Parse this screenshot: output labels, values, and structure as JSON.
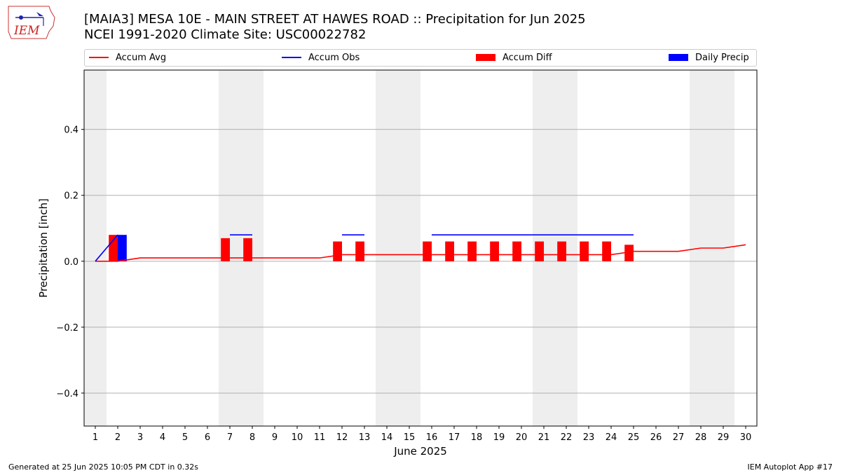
{
  "header": {
    "title_line1": "[MAIA3] MESA 10E - MAIN STREET AT HAWES ROAD :: Precipitation for Jun 2025",
    "title_line2": "NCEI 1991-2020 Climate Site: USC00022782",
    "logo_text": "IEM"
  },
  "footer": {
    "generated": "Generated at 25 Jun 2025 10:05 PM CDT in 0.32s",
    "app": "IEM Autoplot App #17"
  },
  "colors": {
    "avg": "#ff0000",
    "obs": "#0000ff",
    "diff": "#ff0000",
    "daily": "#0000ff",
    "weekend": "#eeeeee",
    "grid": "#b0b0b0"
  },
  "chart_data": {
    "type": "bar",
    "title": "[MAIA3] MESA 10E - MAIN STREET AT HAWES ROAD :: Precipitation for Jun 2025",
    "subtitle": "NCEI 1991-2020 Climate Site: USC00022782",
    "xlabel": "June 2025",
    "ylabel": "Precipitation [inch]",
    "xlim": [
      0.5,
      30.5
    ],
    "ylim": [
      -0.5,
      0.58
    ],
    "xticks": [
      1,
      2,
      3,
      4,
      5,
      6,
      7,
      8,
      9,
      10,
      11,
      12,
      13,
      14,
      15,
      16,
      17,
      18,
      19,
      20,
      21,
      22,
      23,
      24,
      25,
      26,
      27,
      28,
      29,
      30
    ],
    "yticks": [
      -0.4,
      -0.2,
      0.0,
      0.2,
      0.4
    ],
    "ytick_labels": [
      "−0.4",
      "−0.2",
      "0.0",
      "0.2",
      "0.4"
    ],
    "grid": "y",
    "legend_position": "top",
    "shaded_days": [
      [
        0.5,
        1.5
      ],
      [
        6.5,
        8.5
      ],
      [
        13.5,
        15.5
      ],
      [
        20.5,
        22.5
      ],
      [
        27.5,
        29.5
      ]
    ],
    "series": [
      {
        "name": "Accum Avg",
        "kind": "line",
        "x": [
          1,
          2,
          3,
          4,
          5,
          6,
          7,
          8,
          9,
          10,
          11,
          12,
          13,
          14,
          15,
          16,
          17,
          18,
          19,
          20,
          21,
          22,
          23,
          24,
          25,
          26,
          27,
          28,
          29,
          30
        ],
        "values": [
          0.0,
          0.0,
          0.01,
          0.01,
          0.01,
          0.01,
          0.01,
          0.01,
          0.01,
          0.01,
          0.01,
          0.02,
          0.02,
          0.02,
          0.02,
          0.02,
          0.02,
          0.02,
          0.02,
          0.02,
          0.02,
          0.02,
          0.02,
          0.02,
          0.03,
          0.03,
          0.03,
          0.04,
          0.04,
          0.05
        ]
      },
      {
        "name": "Accum Obs",
        "kind": "line",
        "x": [
          1,
          2,
          3,
          4,
          5,
          6,
          7,
          8,
          9,
          10,
          11,
          12,
          13,
          14,
          15,
          16,
          17,
          18,
          19,
          20,
          21,
          22,
          23,
          24,
          25
        ],
        "values": [
          0.0,
          0.08,
          null,
          null,
          null,
          null,
          0.08,
          0.08,
          null,
          null,
          null,
          0.08,
          0.08,
          null,
          null,
          0.08,
          0.08,
          0.08,
          0.08,
          0.08,
          0.08,
          0.08,
          0.08,
          0.08,
          0.08
        ]
      },
      {
        "name": "Accum Diff",
        "kind": "bar",
        "x": [
          2,
          7,
          8,
          12,
          13,
          16,
          17,
          18,
          19,
          20,
          21,
          22,
          23,
          24,
          25
        ],
        "values": [
          0.08,
          0.07,
          0.07,
          0.06,
          0.06,
          0.06,
          0.06,
          0.06,
          0.06,
          0.06,
          0.06,
          0.06,
          0.06,
          0.06,
          0.05
        ]
      },
      {
        "name": "Daily Precip",
        "kind": "bar",
        "x": [
          2
        ],
        "values": [
          0.08
        ]
      }
    ]
  }
}
